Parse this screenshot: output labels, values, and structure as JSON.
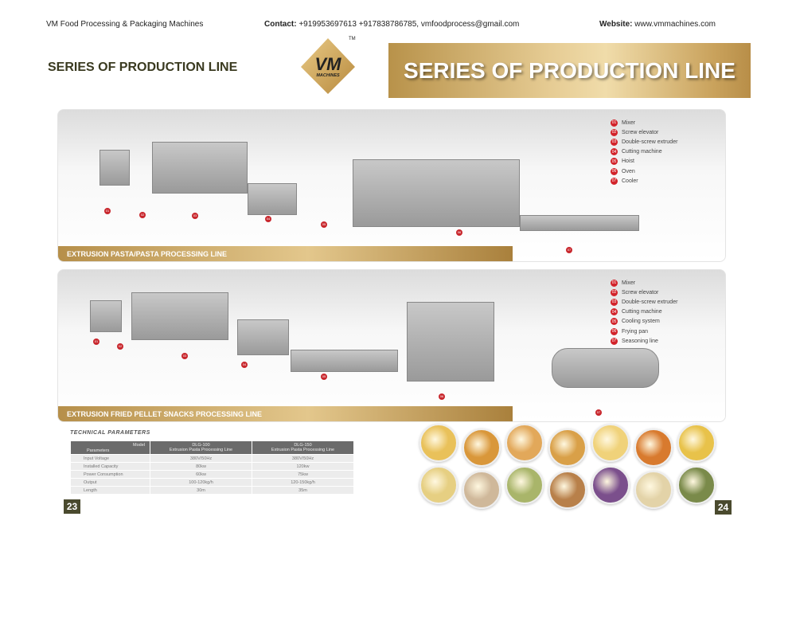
{
  "header": {
    "company": "VM Food Processing & Packaging Machines",
    "contact_label": "Contact:",
    "contact_value": " +919953697613 +917838786785, vmfoodprocess@gmail.com",
    "website_label": "Website:",
    "website_value": " www.vmmachines.com"
  },
  "title_left": "SERIES OF PRODUCTION LINE",
  "logo": {
    "text": "VM",
    "sub": "MACHINES",
    "tm": "TM"
  },
  "banner": "SERIES OF PRODUCTION LINE",
  "lines": [
    {
      "label": "EXTRUSION PASTA/PASTA PROCESSING LINE",
      "legend": [
        {
          "n": "01",
          "t": "Mixer"
        },
        {
          "n": "02",
          "t": "Screw elevator"
        },
        {
          "n": "03",
          "t": "Double-screw extruder"
        },
        {
          "n": "04",
          "t": "Cutting machine"
        },
        {
          "n": "05",
          "t": "Hoist"
        },
        {
          "n": "06",
          "t": "Oven"
        },
        {
          "n": "07",
          "t": "Cooler"
        }
      ]
    },
    {
      "label": "EXTRUSION FRIED PELLET SNACKS PROCESSING LINE",
      "legend": [
        {
          "n": "01",
          "t": "Mixer"
        },
        {
          "n": "02",
          "t": "Screw elevator"
        },
        {
          "n": "03",
          "t": "Double-screw extruder"
        },
        {
          "n": "04",
          "t": "Cutting machine"
        },
        {
          "n": "05",
          "t": "Cooling system"
        },
        {
          "n": "06",
          "t": "Frying pan"
        },
        {
          "n": "07",
          "t": "Seasoning line"
        }
      ]
    }
  ],
  "technical": {
    "title": "TECHNICAL PARAMETERS",
    "corner_top": "Model",
    "corner_bottom": "Parameters",
    "columns": [
      {
        "model": "DLG-100",
        "desc": "Extrusion Pasta Processing Line"
      },
      {
        "model": "DLG-150",
        "desc": "Extrusion Pasta Processing Line"
      }
    ],
    "rows": [
      [
        "Input Voltage",
        "380V/50Hz",
        "380V/50Hz"
      ],
      [
        "Installed Capacity",
        "80kw",
        "120kw"
      ],
      [
        "Power Consumption",
        "60kw",
        "75kw"
      ],
      [
        "Output",
        "100-120kg/h",
        "120-150kg/h"
      ],
      [
        "Length",
        "30m",
        "35m"
      ]
    ]
  },
  "pages": {
    "left": "23",
    "right": "24"
  },
  "colors": {
    "gold": "#c9a25c",
    "badge": "#d2232a",
    "page_box": "#4a4a2e"
  }
}
